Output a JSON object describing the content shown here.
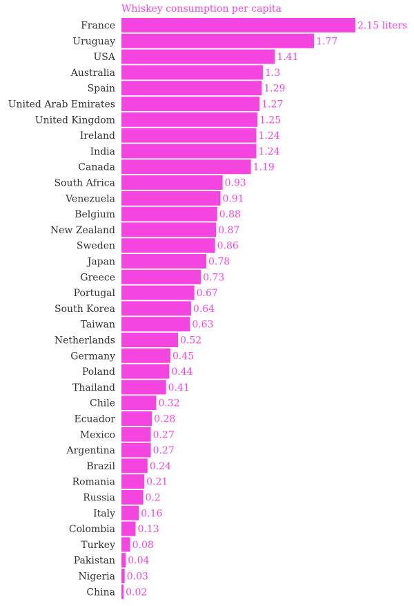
{
  "chart_data": {
    "type": "bar",
    "orientation": "horizontal",
    "title": "Whiskey consumption per capita",
    "value_suffix_first": " liters",
    "color": "#f545e1",
    "xlim": [
      0,
      2.15
    ],
    "categories": [
      "France",
      "Uruguay",
      "USA",
      "Australia",
      "Spain",
      "United Arab Emirates",
      "United Kingdom",
      "Ireland",
      "India",
      "Canada",
      "South Africa",
      "Venezuela",
      "Belgium",
      "New Zealand",
      "Sweden",
      "Japan",
      "Greece",
      "Portugal",
      "South Korea",
      "Taiwan",
      "Netherlands",
      "Germany",
      "Poland",
      "Thailand",
      "Chile",
      "Ecuador",
      "Mexico",
      "Argentina",
      "Brazil",
      "Romania",
      "Russia",
      "Italy",
      "Colombia",
      "Turkey",
      "Pakistan",
      "Nigeria",
      "China"
    ],
    "values": [
      2.15,
      1.77,
      1.41,
      1.3,
      1.29,
      1.27,
      1.25,
      1.24,
      1.24,
      1.19,
      0.93,
      0.91,
      0.88,
      0.87,
      0.86,
      0.78,
      0.73,
      0.67,
      0.64,
      0.63,
      0.52,
      0.45,
      0.44,
      0.41,
      0.32,
      0.28,
      0.27,
      0.27,
      0.24,
      0.21,
      0.2,
      0.16,
      0.13,
      0.08,
      0.04,
      0.03,
      0.02
    ],
    "value_labels": [
      "2.15 liters",
      "1.77",
      "1.41",
      "1.3",
      "1.29",
      "1.27",
      "1.25",
      "1.24",
      "1.24",
      "1.19",
      "0.93",
      "0.91",
      "0.88",
      "0.87",
      "0.86",
      "0.78",
      "0.73",
      "0.67",
      "0.64",
      "0.63",
      "0.52",
      "0.45",
      "0.44",
      "0.41",
      "0.32",
      "0.28",
      "0.27",
      "0.27",
      "0.24",
      "0.21",
      "0.2",
      "0.16",
      "0.13",
      "0.08",
      "0.04",
      "0.03",
      "0.02"
    ]
  }
}
